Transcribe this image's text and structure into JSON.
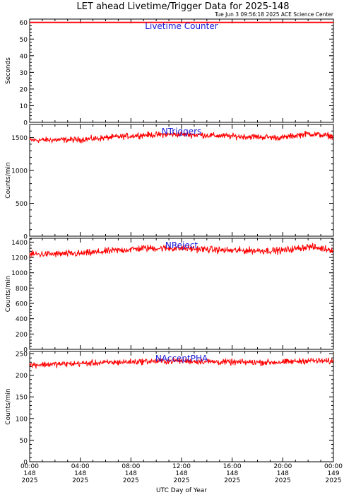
{
  "header": {
    "title": "LET ahead Livetime/Trigger Data for 2025-148",
    "stamp": "Tue Jun  3 09:56:18 2025 ACE Science Center"
  },
  "x_axis": {
    "label": "UTC Day of Year",
    "ticks": [
      {
        "time": "00:00",
        "doy": "148",
        "year": "2025"
      },
      {
        "time": "04:00",
        "doy": "148",
        "year": "2025"
      },
      {
        "time": "08:00",
        "doy": "148",
        "year": "2025"
      },
      {
        "time": "12:00",
        "doy": "148",
        "year": "2025"
      },
      {
        "time": "16:00",
        "doy": "148",
        "year": "2025"
      },
      {
        "time": "20:00",
        "doy": "148",
        "year": "2025"
      },
      {
        "time": "00:00",
        "doy": "149",
        "year": "2025"
      }
    ]
  },
  "colors": {
    "series": "#ff0000",
    "label": "#1a1ad6",
    "axis": "#000000"
  },
  "chart_data": [
    {
      "type": "line",
      "panel_label": "Livetime Counter",
      "ylabel": "Seconds",
      "xlim": [
        0,
        24
      ],
      "ylim": [
        0,
        62
      ],
      "yticks": [
        0,
        10,
        20,
        30,
        40,
        50,
        60
      ],
      "series": [
        {
          "values": {
            "start_hour": 0,
            "end_hour": 24,
            "level": 60,
            "noise": 0
          }
        }
      ]
    },
    {
      "type": "line",
      "panel_label": "NTriggers",
      "ylabel": "Counts/min",
      "xlim": [
        0,
        24
      ],
      "ylim": [
        0,
        1700
      ],
      "yticks": [
        0,
        500,
        1000,
        1500
      ],
      "series": [
        {
          "values": {
            "start_hour": 0,
            "end_hour": 24,
            "level": 1480,
            "trend": [
              [
                0,
                1460
              ],
              [
                4,
                1470
              ],
              [
                9,
                1540
              ],
              [
                12,
                1550
              ],
              [
                16,
                1520
              ],
              [
                20,
                1500
              ],
              [
                22,
                1560
              ],
              [
                24,
                1520
              ]
            ],
            "noise": 45
          }
        }
      ]
    },
    {
      "type": "line",
      "panel_label": "NReject",
      "ylabel": "Counts/min",
      "xlim": [
        0,
        24
      ],
      "ylim": [
        0,
        1450
      ],
      "yticks": [
        0,
        200,
        400,
        600,
        800,
        1000,
        1200,
        1400
      ],
      "series": [
        {
          "values": {
            "start_hour": 0,
            "end_hour": 24,
            "trend": [
              [
                0,
                1240
              ],
              [
                4,
                1250
              ],
              [
                9,
                1320
              ],
              [
                12,
                1320
              ],
              [
                16,
                1290
              ],
              [
                20,
                1290
              ],
              [
                22,
                1340
              ],
              [
                24,
                1300
              ]
            ],
            "noise": 45
          }
        }
      ]
    },
    {
      "type": "line",
      "panel_label": "NAcceptPHA",
      "ylabel": "Counts/min",
      "xlim": [
        0,
        24
      ],
      "ylim": [
        0,
        255
      ],
      "yticks": [
        0,
        50,
        100,
        150,
        200,
        250
      ],
      "series": [
        {
          "values": {
            "start_hour": 0,
            "end_hour": 24,
            "trend": [
              [
                0,
                224
              ],
              [
                4,
                227
              ],
              [
                9,
                232
              ],
              [
                12,
                233
              ],
              [
                16,
                230
              ],
              [
                20,
                230
              ],
              [
                22,
                234
              ],
              [
                24,
                232
              ]
            ],
            "noise": 7
          }
        }
      ]
    }
  ]
}
